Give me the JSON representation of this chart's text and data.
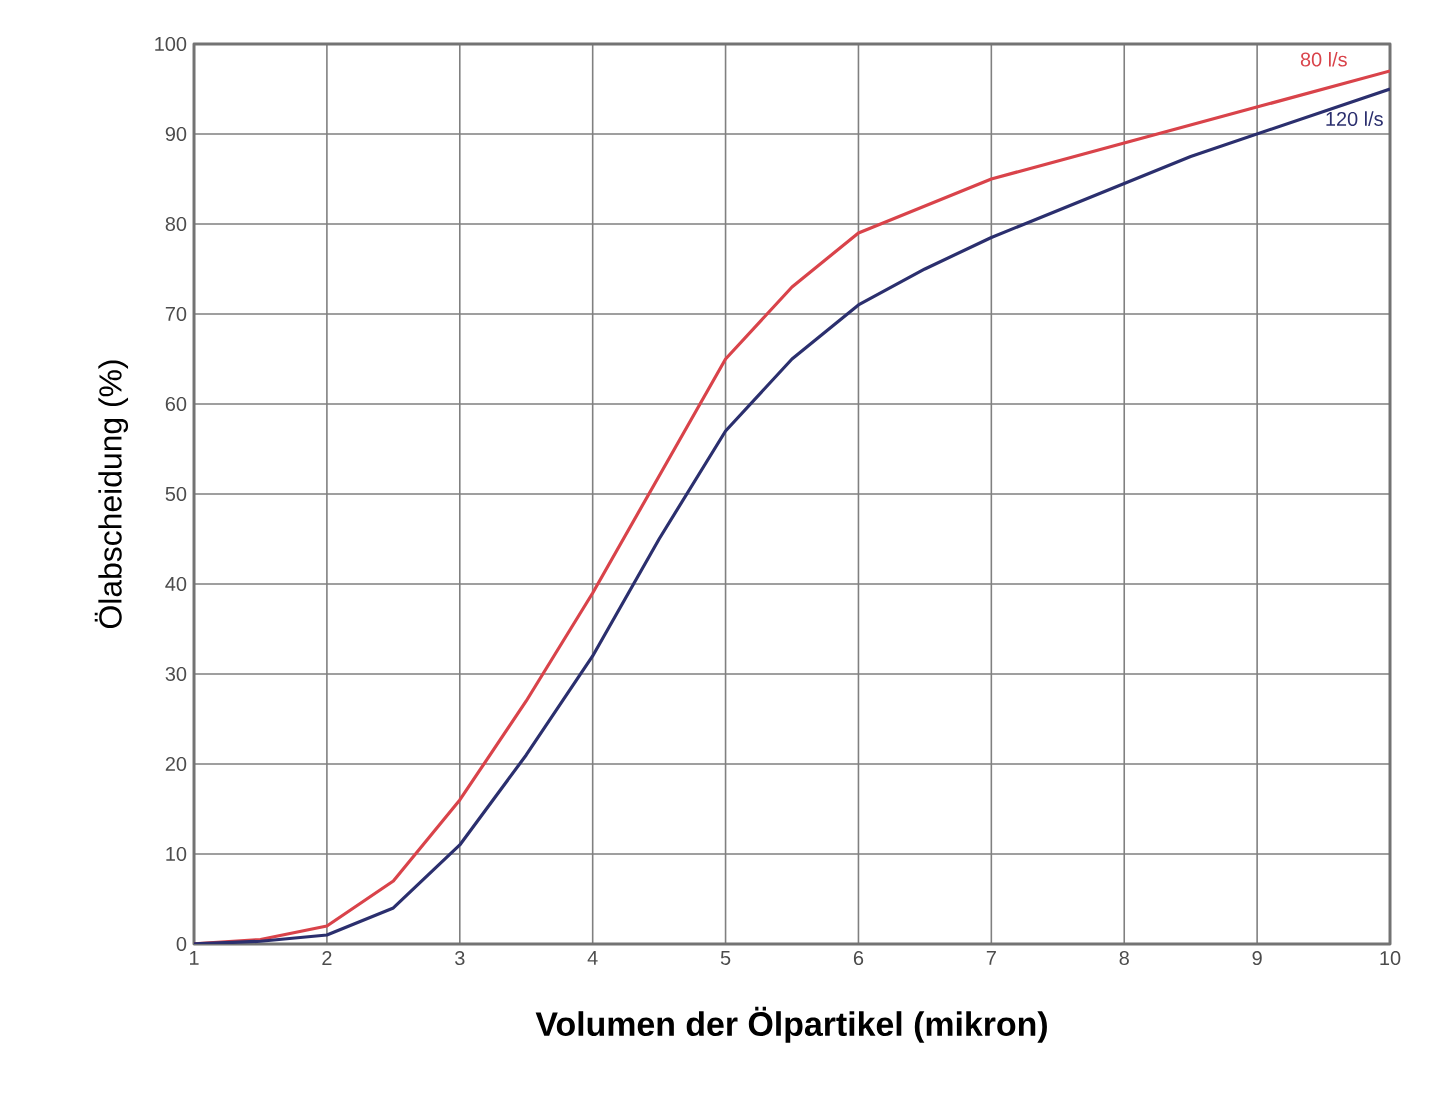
{
  "chart_data": {
    "type": "line",
    "xlabel": "Volumen der Ölpartikel (mikron)",
    "ylabel": "Ölabscheidung (%)",
    "x": [
      1,
      1.5,
      2,
      2.5,
      3,
      3.5,
      4,
      4.5,
      5,
      5.5,
      6,
      6.5,
      7,
      7.5,
      8,
      8.5,
      9,
      9.5,
      10
    ],
    "series": [
      {
        "name": "80 l/s",
        "color": "#d9434a",
        "values": [
          0,
          0.5,
          2,
          7,
          16,
          27,
          39,
          52,
          65,
          73,
          79,
          82,
          85,
          87,
          89,
          91,
          93,
          95,
          97
        ]
      },
      {
        "name": "120 l/s",
        "color": "#2b2f6e",
        "values": [
          0,
          0.3,
          1,
          4,
          11,
          21,
          32,
          45,
          57,
          65,
          71,
          75,
          78.5,
          81.5,
          84.5,
          87.5,
          90,
          92.5,
          95
        ]
      }
    ],
    "xlim": [
      1,
      10
    ],
    "xticks": [
      1,
      2,
      3,
      4,
      5,
      6,
      7,
      8,
      9,
      10
    ],
    "ylim": [
      0,
      100
    ],
    "yticks": [
      0,
      10,
      20,
      30,
      40,
      50,
      60,
      70,
      80,
      90,
      100
    ],
    "grid": true,
    "legend": false,
    "marker": "none",
    "line_style": "solid"
  }
}
